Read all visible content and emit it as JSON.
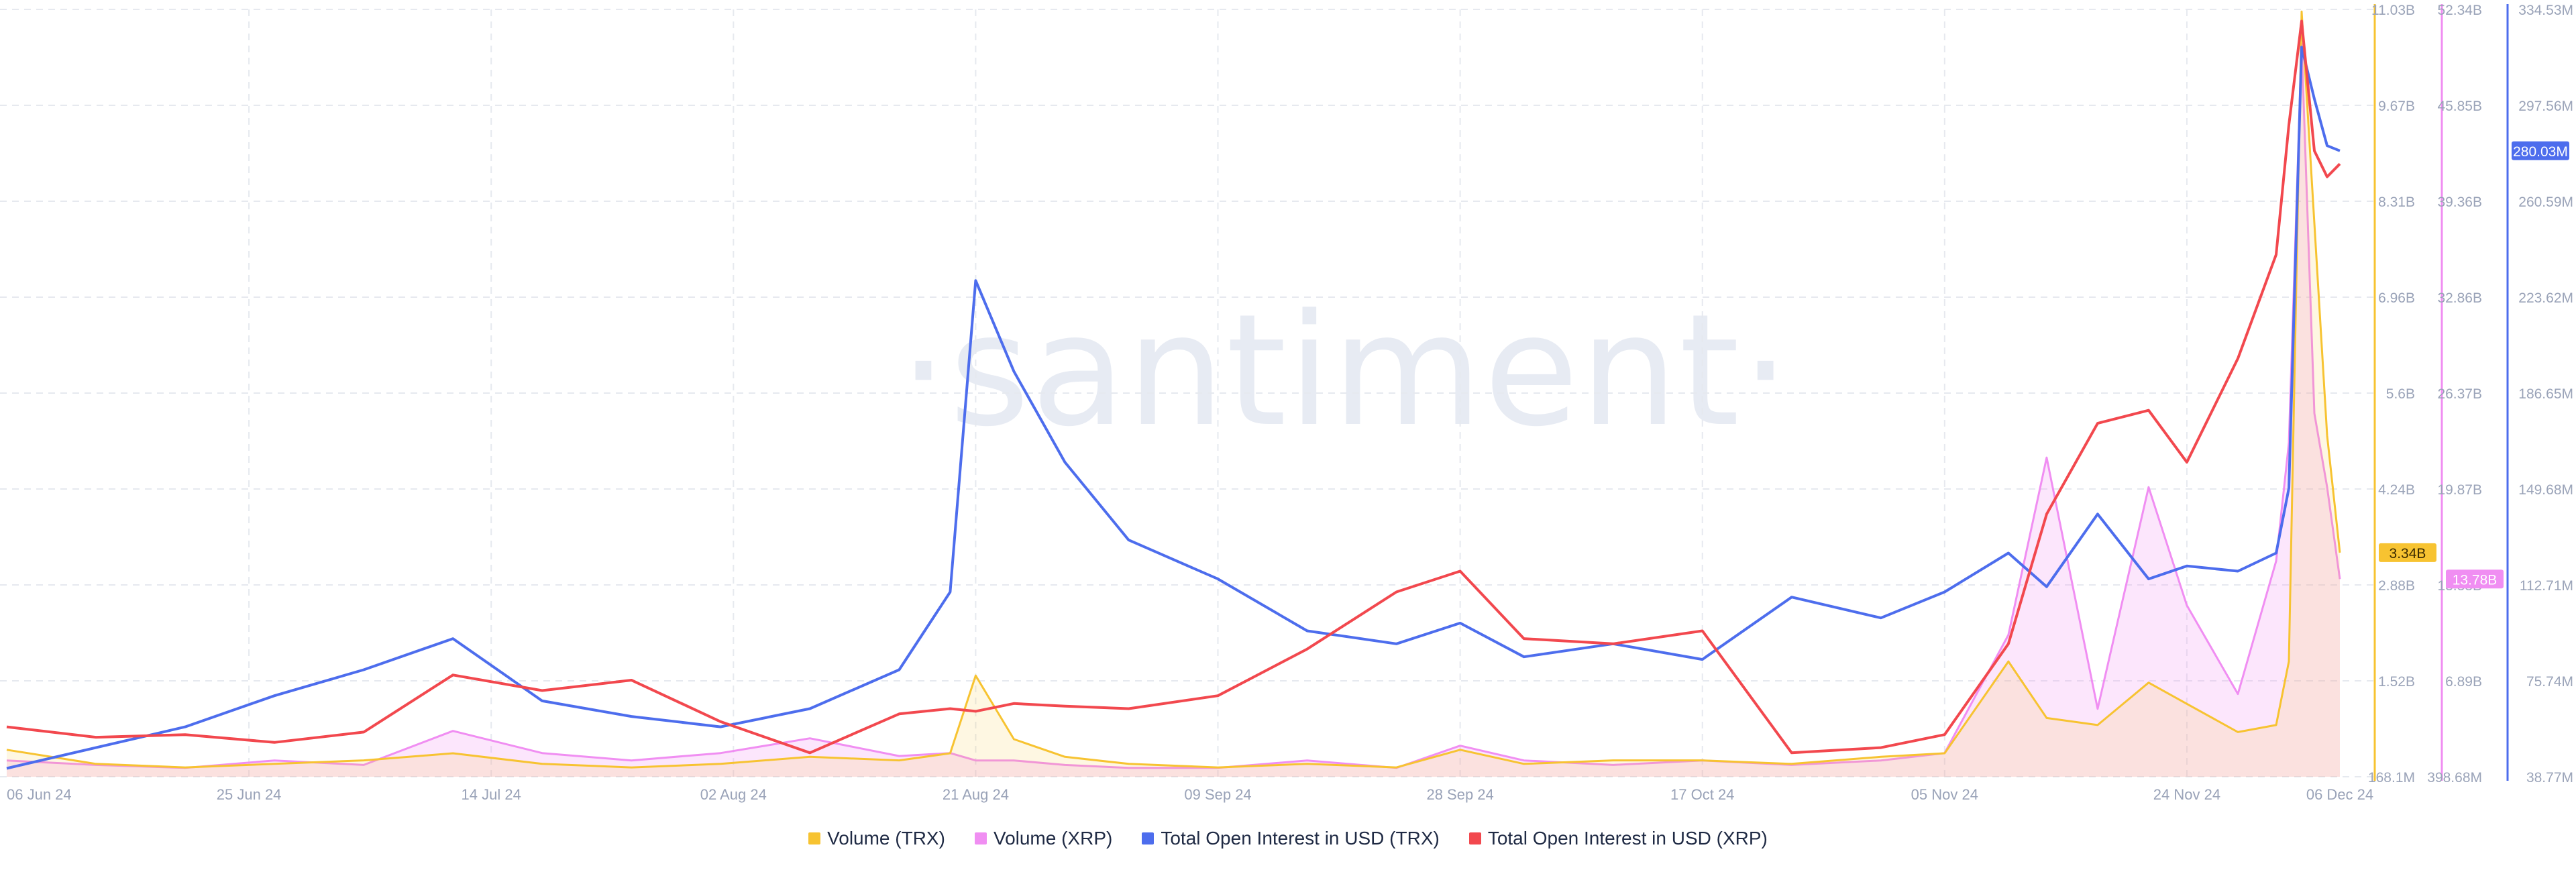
{
  "watermark": "·santiment·",
  "colors": {
    "volume_trx": "#f7c331",
    "volume_xrp": "#f08ef2",
    "oi_trx": "#4d6ded",
    "oi_xrp": "#f2484e",
    "axis_text": "#9aa3b8",
    "grid": "#e6e9ef"
  },
  "legend": [
    {
      "label": "Volume (TRX)",
      "color": "#f7c331"
    },
    {
      "label": "Volume (XRP)",
      "color": "#f08ef2"
    },
    {
      "label": "Total Open Interest in USD (TRX)",
      "color": "#4d6ded"
    },
    {
      "label": "Total Open Interest in USD (XRP)",
      "color": "#f2484e"
    }
  ],
  "chart_data": {
    "type": "line",
    "legend_position": "bottom",
    "grid": true,
    "x_ticks": [
      "06 Jun 24",
      "25 Jun 24",
      "14 Jul 24",
      "02 Aug 24",
      "21 Aug 24",
      "09 Sep 24",
      "28 Sep 24",
      "17 Oct 24",
      "05 Nov 24",
      "24 Nov 24",
      "06 Dec 24"
    ],
    "y_axes": [
      {
        "series": "Volume (TRX)",
        "ticks": [
          "168.1M",
          "1.52B",
          "2.88B",
          "4.24B",
          "5.6B",
          "6.96B",
          "8.31B",
          "9.67B",
          "11.03B"
        ],
        "range": [
          0.1681,
          11.03
        ],
        "unit": "B",
        "current_value_label": "3.34B"
      },
      {
        "series": "Volume (XRP)",
        "ticks": [
          "398.68M",
          "6.89B",
          "13.38B",
          "19.87B",
          "26.37B",
          "32.86B",
          "39.36B",
          "45.85B",
          "52.34B"
        ],
        "range": [
          0.39868,
          52.34
        ],
        "unit": "B",
        "current_value_label": "13.78B"
      },
      {
        "series": "Total Open Interest in USD (TRX)",
        "ticks": [
          "38.77M",
          "75.74M",
          "112.71M",
          "149.68M",
          "186.65M",
          "223.62M",
          "260.59M",
          "297.56M",
          "334.53M"
        ],
        "range": [
          38.77,
          334.53
        ],
        "unit": "M",
        "current_value_label": "280.03M"
      }
    ],
    "x": [
      "2024-06-06",
      "2024-06-13",
      "2024-06-20",
      "2024-06-27",
      "2024-07-04",
      "2024-07-11",
      "2024-07-18",
      "2024-07-25",
      "2024-08-01",
      "2024-08-08",
      "2024-08-15",
      "2024-08-19",
      "2024-08-21",
      "2024-08-24",
      "2024-08-28",
      "2024-09-02",
      "2024-09-09",
      "2024-09-16",
      "2024-09-23",
      "2024-09-28",
      "2024-10-03",
      "2024-10-10",
      "2024-10-17",
      "2024-10-24",
      "2024-10-31",
      "2024-11-05",
      "2024-11-10",
      "2024-11-13",
      "2024-11-17",
      "2024-11-21",
      "2024-11-24",
      "2024-11-28",
      "2024-12-01",
      "2024-12-02",
      "2024-12-03",
      "2024-12-04",
      "2024-12-05",
      "2024-12-06"
    ],
    "series": [
      {
        "name": "Volume (TRX)",
        "axis": 0,
        "values": [
          0.55,
          0.35,
          0.3,
          0.35,
          0.4,
          0.5,
          0.35,
          0.3,
          0.35,
          0.45,
          0.4,
          0.5,
          1.6,
          0.7,
          0.45,
          0.35,
          0.3,
          0.35,
          0.3,
          0.55,
          0.35,
          0.4,
          0.4,
          0.35,
          0.45,
          0.5,
          1.8,
          1.0,
          0.9,
          1.5,
          1.2,
          0.8,
          0.9,
          1.8,
          11.0,
          8.0,
          5.0,
          3.34
        ]
      },
      {
        "name": "Volume (XRP)",
        "axis": 1,
        "values": [
          1.5,
          1.2,
          1.0,
          1.5,
          1.2,
          3.5,
          2.0,
          1.5,
          2.0,
          3.0,
          1.8,
          2.0,
          1.5,
          1.5,
          1.2,
          1.0,
          1.0,
          1.5,
          1.0,
          2.5,
          1.5,
          1.2,
          1.5,
          1.2,
          1.5,
          2.0,
          10.0,
          22.0,
          5.0,
          20.0,
          12.0,
          6.0,
          15.0,
          23.0,
          50.0,
          25.0,
          20.0,
          13.78
        ]
      },
      {
        "name": "Total Open Interest in USD (TRX)",
        "axis": 2,
        "values": [
          42,
          50,
          58,
          70,
          80,
          92,
          68,
          62,
          58,
          65,
          80,
          110,
          230,
          195,
          160,
          130,
          115,
          95,
          90,
          98,
          85,
          90,
          84,
          108,
          100,
          110,
          125,
          112,
          140,
          115,
          120,
          118,
          125,
          150,
          320,
          300,
          282,
          280.03
        ]
      },
      {
        "name": "Total Open Interest in USD (XRP)",
        "axis": 2,
        "values": [
          58,
          54,
          55,
          52,
          56,
          78,
          72,
          76,
          60,
          48,
          63,
          65,
          64,
          67,
          66,
          65,
          70,
          88,
          110,
          118,
          92,
          90,
          95,
          48,
          50,
          55,
          90,
          140,
          175,
          180,
          160,
          200,
          240,
          290,
          330,
          280,
          270,
          275
        ]
      }
    ]
  }
}
